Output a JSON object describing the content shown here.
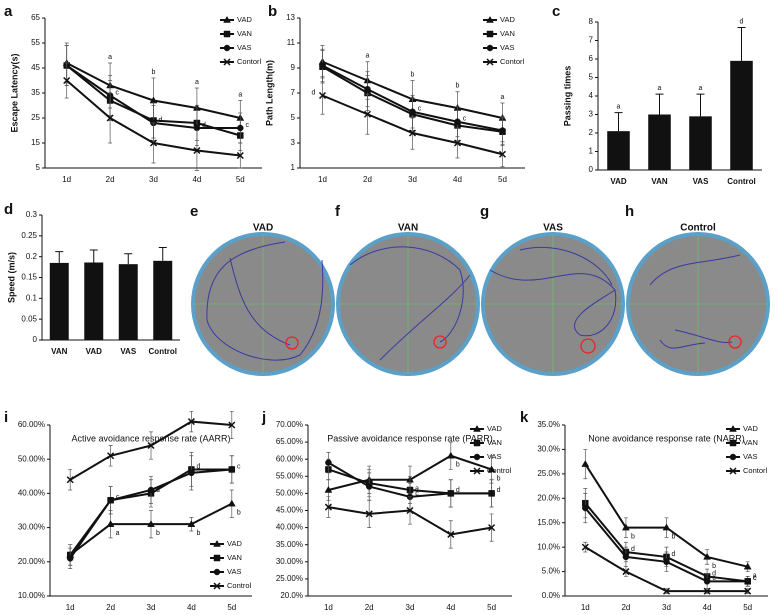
{
  "chart_data": [
    {
      "panel": "a",
      "type": "line",
      "ylabel": "Escape Latency(s)",
      "categories": [
        "1d",
        "2d",
        "3d",
        "4d",
        "5d"
      ],
      "ylim": [
        5,
        65
      ],
      "yticks": [
        5,
        15,
        25,
        35,
        45,
        55,
        65
      ],
      "legend": "upper right",
      "series": [
        {
          "name": "VAD",
          "color": "#111111",
          "marker": "triangle",
          "values": [
            47,
            38,
            32,
            29,
            25
          ],
          "errors": [
            8,
            9,
            9,
            8,
            7
          ],
          "labels": [
            null,
            "a",
            "b",
            "a",
            "a"
          ]
        },
        {
          "name": "VAN",
          "color": "#111111",
          "marker": "square",
          "values": [
            46,
            32,
            24,
            23,
            18
          ],
          "errors": [
            8,
            8,
            7,
            7,
            6
          ],
          "labels": [
            null,
            null,
            null,
            null,
            null
          ]
        },
        {
          "name": "VAS",
          "color": "#111111",
          "marker": "circle",
          "values": [
            46,
            34,
            23,
            21,
            21
          ],
          "errors": [
            8,
            8,
            7,
            7,
            6
          ],
          "labels": [
            null,
            "c",
            "d",
            "d",
            "c"
          ]
        },
        {
          "name": "Contorl",
          "color": "#111111",
          "marker": "x",
          "values": [
            40,
            25,
            15,
            12,
            10
          ],
          "errors": [
            7,
            10,
            8,
            8,
            5
          ],
          "labels": [
            null,
            null,
            null,
            null,
            null
          ]
        }
      ]
    },
    {
      "panel": "b",
      "type": "line",
      "ylabel": "Path Length(m)",
      "categories": [
        "1d",
        "2d",
        "3d",
        "4d",
        "5d"
      ],
      "ylim": [
        1,
        13
      ],
      "yticks": [
        1,
        3,
        5,
        7,
        9,
        11,
        13
      ],
      "legend": "upper right",
      "series": [
        {
          "name": "VAD",
          "color": "#111111",
          "marker": "triangle",
          "values": [
            9.5,
            8,
            6.5,
            5.8,
            5
          ],
          "errors": [
            1.3,
            1.5,
            1.5,
            1.3,
            1.2
          ],
          "labels": [
            null,
            "a",
            "b",
            "b",
            "a"
          ]
        },
        {
          "name": "VAN",
          "color": "#111111",
          "marker": "square",
          "values": [
            9.1,
            7,
            5.3,
            4.4,
            3.9
          ],
          "errors": [
            1.3,
            1.4,
            1.3,
            1.2,
            1.1
          ],
          "labels": [
            null,
            null,
            null,
            null,
            null
          ]
        },
        {
          "name": "VAS",
          "color": "#111111",
          "marker": "circle",
          "values": [
            9.2,
            7.3,
            5.5,
            4.7,
            4
          ],
          "errors": [
            1.3,
            1.4,
            1.3,
            1.2,
            1.1
          ],
          "labels": [
            null,
            null,
            "c",
            "c",
            null
          ]
        },
        {
          "name": "Contorl",
          "color": "#111111",
          "marker": "x",
          "values": [
            6.8,
            5.3,
            3.8,
            3,
            2.1
          ],
          "errors": [
            1.5,
            1.6,
            1.3,
            1.2,
            1
          ],
          "labels": [
            "d",
            null,
            null,
            null,
            null
          ]
        }
      ]
    },
    {
      "panel": "c",
      "type": "bar",
      "ylabel": "Passing times",
      "categories": [
        "VAD",
        "VAN",
        "VAS",
        "Control"
      ],
      "values": [
        2.1,
        3,
        2.9,
        5.9
      ],
      "errors": [
        1,
        1.1,
        1.2,
        1.8
      ],
      "labels": [
        "a",
        "a",
        "a",
        "d"
      ],
      "color": "#111111",
      "ylim": [
        0,
        8
      ],
      "yticks": [
        0,
        1,
        2,
        3,
        4,
        5,
        6,
        7,
        8
      ]
    },
    {
      "panel": "d",
      "type": "bar",
      "ylabel": "Speed (m/s)",
      "categories": [
        "VAN",
        "VAD",
        "VAS",
        "Control"
      ],
      "values": [
        0.185,
        0.186,
        0.182,
        0.19
      ],
      "errors": [
        0.027,
        0.03,
        0.025,
        0.032
      ],
      "color": "#111111",
      "ylim": [
        0,
        0.3
      ],
      "yticks": [
        0,
        0.05,
        0.1,
        0.15,
        0.2,
        0.25,
        0.3
      ]
    },
    {
      "panel": "i",
      "type": "line",
      "title": "Active avoidance response rate (AARR)",
      "categories": [
        "1d",
        "2d",
        "3d",
        "4d",
        "5d"
      ],
      "ylim": [
        10,
        60
      ],
      "yticks": [
        {
          "value": 10,
          "label": "10.00%"
        },
        {
          "value": 20,
          "label": "20.00%"
        },
        {
          "value": 30,
          "label": "30.00%"
        },
        {
          "value": 40,
          "label": "40.00%"
        },
        {
          "value": 50,
          "label": "50.00%"
        },
        {
          "value": 60,
          "label": "60.00%"
        }
      ],
      "legend": "lower right",
      "series": [
        {
          "name": "VAD",
          "color": "#111111",
          "marker": "triangle",
          "values": [
            22,
            31,
            31,
            31,
            37
          ],
          "errors": [
            3,
            4,
            4,
            2,
            4
          ],
          "labels": [
            null,
            "a",
            "b",
            "b",
            "b"
          ]
        },
        {
          "name": "VAN",
          "color": "#111111",
          "marker": "square",
          "values": [
            22,
            38,
            40,
            47,
            47
          ],
          "errors": [
            3,
            4,
            4,
            5,
            4
          ],
          "labels": [
            null,
            "c",
            "d",
            "d",
            "c"
          ]
        },
        {
          "name": "VAS",
          "color": "#111111",
          "marker": "circle",
          "values": [
            21,
            38,
            41,
            46,
            47
          ],
          "errors": [
            3,
            4,
            4,
            5,
            4
          ],
          "labels": [
            null,
            null,
            null,
            null,
            null
          ]
        },
        {
          "name": "Control",
          "color": "#111111",
          "marker": "x",
          "values": [
            44,
            51,
            54,
            61,
            60
          ],
          "errors": [
            3,
            3,
            4,
            3,
            4
          ],
          "labels": [
            null,
            null,
            null,
            null,
            null
          ]
        }
      ]
    },
    {
      "panel": "j",
      "type": "line",
      "title": "Passive avoidance response rate (PARR)",
      "categories": [
        "1d",
        "2d",
        "3d",
        "4d",
        "5d"
      ],
      "ylim": [
        20,
        70
      ],
      "yticks": [
        {
          "value": 20,
          "label": "20.0%"
        },
        {
          "value": 25,
          "label": "25.00%"
        },
        {
          "value": 30,
          "label": "30.00%"
        },
        {
          "value": 35,
          "label": "35.00%"
        },
        {
          "value": 40,
          "label": "40.00%"
        },
        {
          "value": 45,
          "label": "45.00%"
        },
        {
          "value": 50,
          "label": "50.00%"
        },
        {
          "value": 55,
          "label": "55.00%"
        },
        {
          "value": 60,
          "label": "60.00%"
        },
        {
          "value": 65,
          "label": "65.00%"
        },
        {
          "value": 70,
          "label": "70.00%"
        }
      ],
      "legend": "upper right",
      "series": [
        {
          "name": "VAD",
          "color": "#111111",
          "marker": "triangle",
          "values": [
            51,
            54,
            54,
            61,
            57
          ],
          "errors": [
            3,
            4,
            4,
            4,
            4
          ],
          "labels": [
            null,
            null,
            "a",
            "b",
            "b"
          ]
        },
        {
          "name": "VAN",
          "color": "#111111",
          "marker": "square",
          "values": [
            57,
            53,
            51,
            50,
            50
          ],
          "errors": [
            3,
            4,
            4,
            4,
            4
          ],
          "labels": [
            null,
            null,
            null,
            null,
            null
          ]
        },
        {
          "name": "VAS",
          "color": "#111111",
          "marker": "circle",
          "values": [
            59,
            52,
            49,
            50,
            50
          ],
          "errors": [
            3,
            4,
            4,
            4,
            4
          ],
          "labels": [
            null,
            null,
            "c",
            "d",
            "d"
          ]
        },
        {
          "name": "Control",
          "color": "#111111",
          "marker": "x",
          "values": [
            46,
            44,
            45,
            38,
            40
          ],
          "errors": [
            3,
            4,
            4,
            4,
            4
          ],
          "labels": [
            null,
            null,
            null,
            null,
            null
          ]
        }
      ]
    },
    {
      "panel": "k",
      "type": "line",
      "title": "None avoidance response rate (NARR)",
      "categories": [
        "1d",
        "2d",
        "3d",
        "4d",
        "5d"
      ],
      "ylim": [
        0,
        35
      ],
      "yticks": [
        {
          "value": 0,
          "label": "0.0%"
        },
        {
          "value": 5,
          "label": "5.0%"
        },
        {
          "value": 10,
          "label": "10.0%"
        },
        {
          "value": 15,
          "label": "15.0%"
        },
        {
          "value": 20,
          "label": "20.0%"
        },
        {
          "value": 25,
          "label": "25.0%"
        },
        {
          "value": 30,
          "label": "30.0%"
        },
        {
          "value": 35,
          "label": "35.0%"
        }
      ],
      "legend": "upper right",
      "series": [
        {
          "name": "VAD",
          "color": "#111111",
          "marker": "triangle",
          "values": [
            27,
            14,
            14,
            8,
            6
          ],
          "errors": [
            3,
            2,
            2,
            1.5,
            1
          ],
          "labels": [
            null,
            "b",
            "b",
            "b",
            "a"
          ]
        },
        {
          "name": "VAN",
          "color": "#111111",
          "marker": "square",
          "values": [
            19,
            9,
            8,
            4,
            3
          ],
          "errors": [
            3,
            2,
            2,
            1.5,
            1
          ],
          "labels": [
            null,
            "d",
            "d",
            "d",
            "c"
          ]
        },
        {
          "name": "VAS",
          "color": "#111111",
          "marker": "circle",
          "values": [
            18,
            8,
            7,
            3,
            3
          ],
          "errors": [
            3,
            2,
            2,
            1.5,
            1
          ],
          "labels": [
            null,
            null,
            null,
            "c",
            "c"
          ]
        },
        {
          "name": "Contorl",
          "color": "#111111",
          "marker": "x",
          "values": [
            10,
            5,
            1,
            1,
            1
          ],
          "errors": [
            1,
            1,
            0.5,
            0.5,
            0.5
          ],
          "labels": [
            null,
            null,
            null,
            null,
            null
          ]
        }
      ]
    }
  ],
  "images": [
    {
      "panel": "e",
      "title": "VAD"
    },
    {
      "panel": "f",
      "title": "VAN"
    },
    {
      "panel": "g",
      "title": "VAS"
    },
    {
      "panel": "h",
      "title": "Control"
    }
  ]
}
